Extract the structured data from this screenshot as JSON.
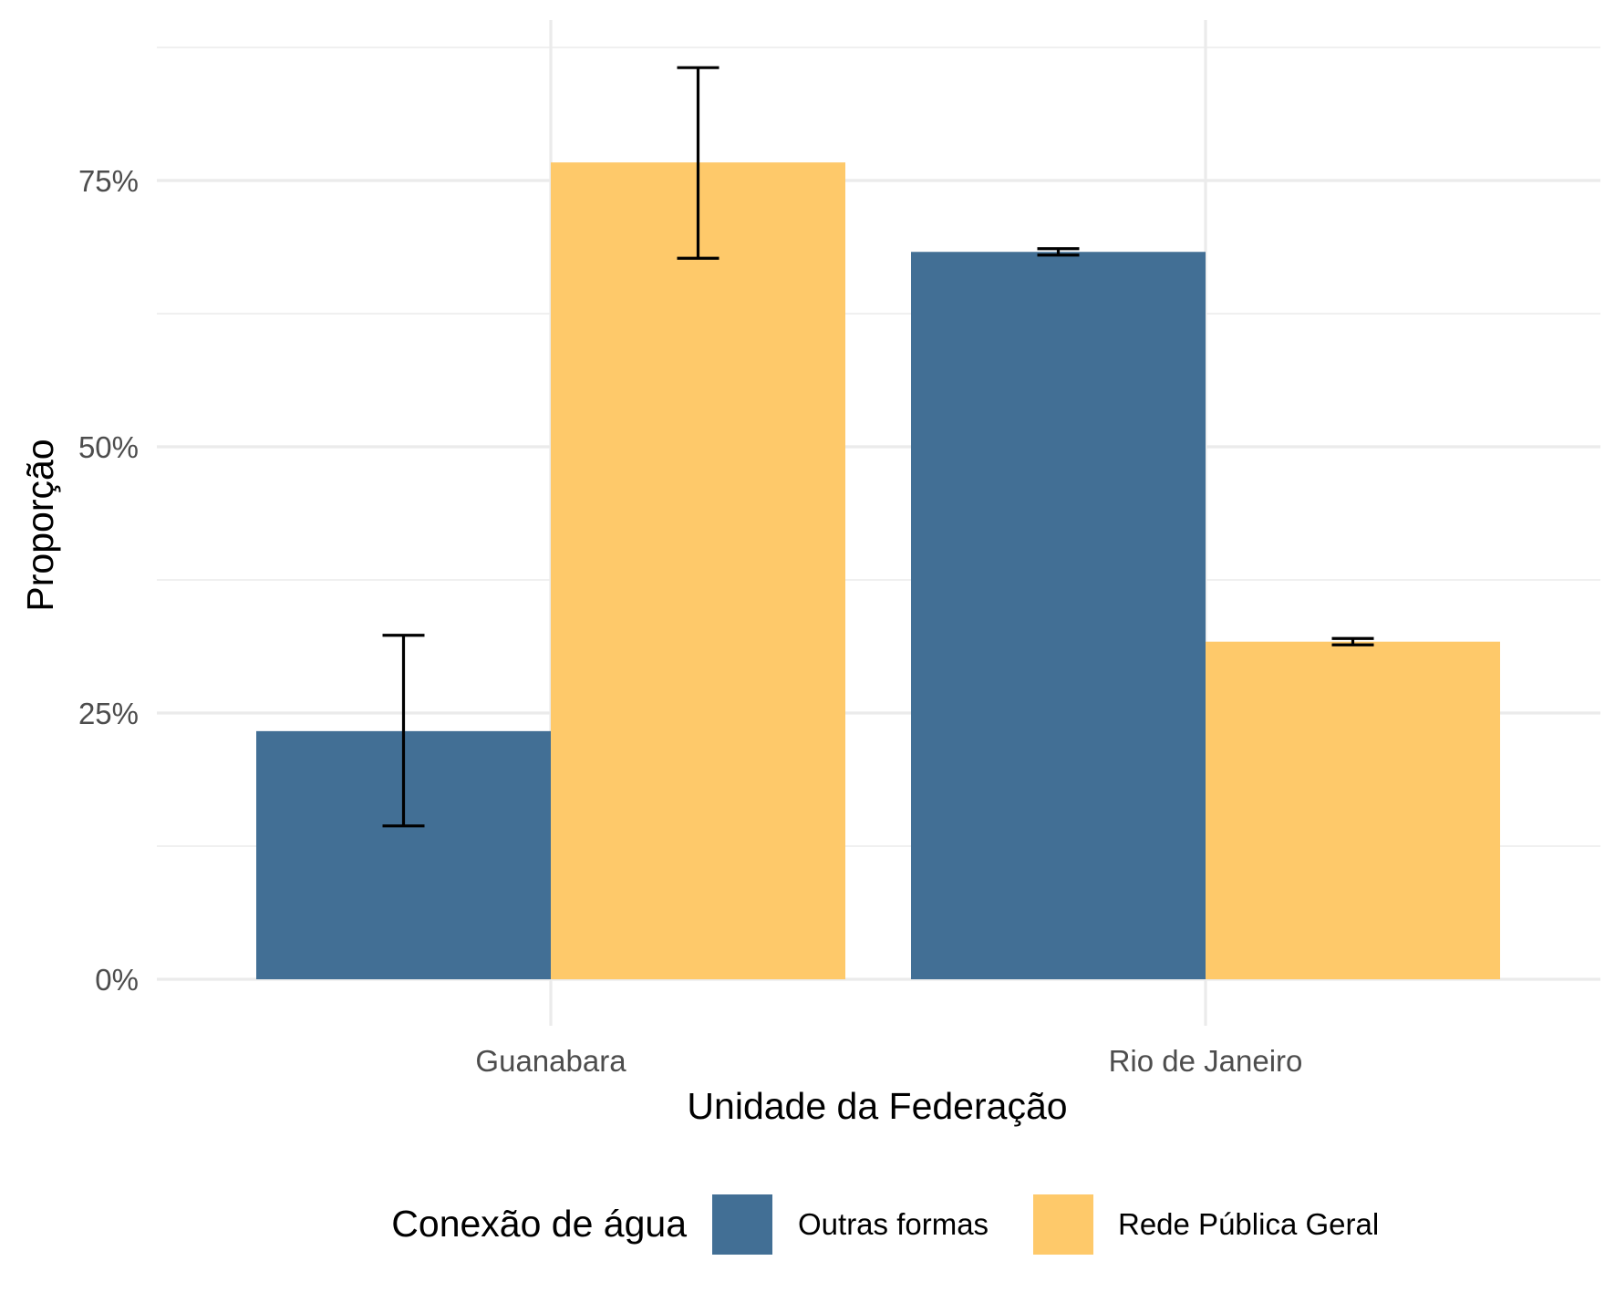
{
  "chart_data": {
    "type": "bar",
    "categories": [
      "Guanabara",
      "Rio de Janeiro"
    ],
    "series": [
      {
        "name": "Outras formas",
        "color": "#426F95",
        "values": [
          23.3,
          68.3
        ],
        "error_low": [
          14.4,
          68.0
        ],
        "error_high": [
          32.3,
          68.6
        ]
      },
      {
        "name": "Rede Pública Geral",
        "color": "#FEC96A",
        "values": [
          76.7,
          31.7
        ],
        "error_low": [
          67.7,
          31.4
        ],
        "error_high": [
          85.6,
          32.0
        ]
      }
    ],
    "xlabel": "Unidade da Federação",
    "ylabel": "Proporção",
    "ylim": [
      -4,
      90
    ],
    "yticks": [
      0,
      25,
      50,
      75
    ],
    "ytick_labels": [
      "0%",
      "25%",
      "50%",
      "75%"
    ],
    "grid": true,
    "error_bars": true,
    "legend": {
      "title": "Conexão de água",
      "position": "bottom"
    }
  }
}
